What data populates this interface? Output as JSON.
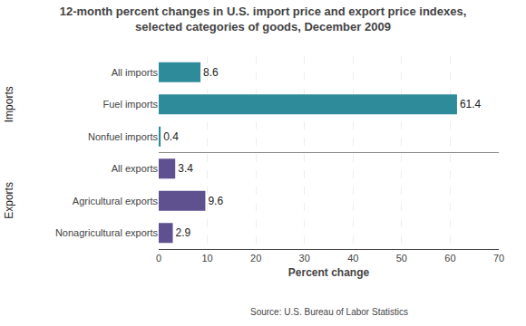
{
  "chart_data": {
    "type": "bar",
    "orientation": "horizontal",
    "title": "12-month percent changes in U.S. import price and export price indexes,",
    "subtitle": "selected categories of goods, December 2009",
    "categories": [
      "All imports",
      "Fuel imports",
      "Nonfuel imports",
      "All exports",
      "Agricultural exports",
      "Nonagricultural exports"
    ],
    "values": [
      8.6,
      61.4,
      0.4,
      3.4,
      9.6,
      2.9
    ],
    "colors": [
      "#2e8b9a",
      "#2e8b9a",
      "#2e8b9a",
      "#5f5090",
      "#5f5090",
      "#5f5090"
    ],
    "data_labels": true,
    "xlabel": "Percent change",
    "xlim": [
      0,
      70
    ],
    "xticks": [
      0,
      10,
      20,
      30,
      40,
      50,
      60,
      70
    ],
    "grid": true,
    "annotations": [
      {
        "text": "Imports",
        "category": "Fuel imports"
      },
      {
        "text": "Exports",
        "category": "Agricultural exports"
      }
    ],
    "source": "Source: U.S. Bureau of Labor Statistics"
  }
}
